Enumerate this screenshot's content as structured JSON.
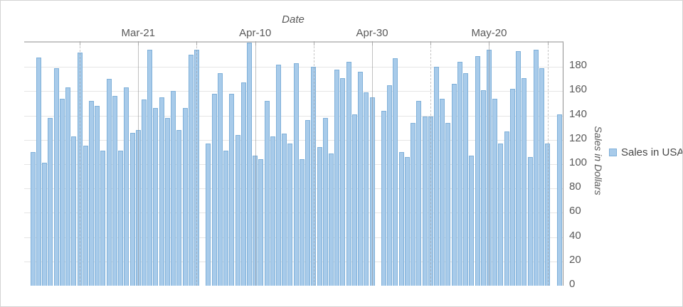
{
  "chart_title_x_axis": "Date",
  "y_axis_title": "Sales in Dollars",
  "legend": {
    "label": "Sales in USA",
    "swatch_fill": "#a8cbea",
    "swatch_border": "#7fb0d9"
  },
  "colors": {
    "bar_fill": "#a8cbea",
    "bar_border": "#7fb0d9",
    "h_gridline": "#e5e5e5",
    "axis_line": "#8f8f8f",
    "text": "#595959"
  },
  "chart_data": {
    "type": "bar",
    "title": "Date",
    "xlabel": "Date",
    "ylabel": "Sales in Dollars",
    "series_name": "Sales in USA",
    "ylim": [
      0,
      200
    ],
    "y_tick_step": 20,
    "y_tick_labels": [
      "0",
      "20",
      "40",
      "60",
      "80",
      "100",
      "120",
      "140",
      "160",
      "180"
    ],
    "x_major_tick_labels": [
      "Mar-21",
      "Apr-10",
      "Apr-30",
      "May-20"
    ],
    "x_minor_tick_dates": [
      "Mar-11",
      "Mar-31",
      "Apr-20",
      "May-10",
      "May-30"
    ],
    "grid": "horizontal-solid, vertical major solid + minor dashed",
    "legend_position": "right",
    "missing_dates": [
      "Apr-01",
      "May-01",
      "May-31"
    ],
    "dates": [
      "Mar-03",
      "Mar-04",
      "Mar-05",
      "Mar-06",
      "Mar-07",
      "Mar-08",
      "Mar-09",
      "Mar-10",
      "Mar-11",
      "Mar-12",
      "Mar-13",
      "Mar-14",
      "Mar-15",
      "Mar-16",
      "Mar-17",
      "Mar-18",
      "Mar-19",
      "Mar-20",
      "Mar-21",
      "Mar-22",
      "Mar-23",
      "Mar-24",
      "Mar-25",
      "Mar-26",
      "Mar-27",
      "Mar-28",
      "Mar-29",
      "Mar-30",
      "Mar-31",
      "Apr-02",
      "Apr-03",
      "Apr-04",
      "Apr-05",
      "Apr-06",
      "Apr-07",
      "Apr-08",
      "Apr-09",
      "Apr-10",
      "Apr-11",
      "Apr-12",
      "Apr-13",
      "Apr-14",
      "Apr-15",
      "Apr-16",
      "Apr-17",
      "Apr-18",
      "Apr-19",
      "Apr-20",
      "Apr-21",
      "Apr-22",
      "Apr-23",
      "Apr-24",
      "Apr-25",
      "Apr-26",
      "Apr-27",
      "Apr-28",
      "Apr-29",
      "Apr-30",
      "May-02",
      "May-03",
      "May-04",
      "May-05",
      "May-06",
      "May-07",
      "May-08",
      "May-09",
      "May-10",
      "May-11",
      "May-12",
      "May-13",
      "May-14",
      "May-15",
      "May-16",
      "May-17",
      "May-18",
      "May-19",
      "May-20",
      "May-21",
      "May-22",
      "May-23",
      "May-24",
      "May-25",
      "May-26",
      "May-27",
      "May-28",
      "May-29",
      "May-30",
      "Jun-01"
    ],
    "values": [
      110,
      188,
      101,
      138,
      179,
      154,
      163,
      123,
      192,
      115,
      152,
      148,
      111,
      170,
      156,
      111,
      163,
      126,
      128,
      153,
      194,
      146,
      155,
      138,
      160,
      128,
      146,
      190,
      194,
      117,
      158,
      175,
      111,
      158,
      124,
      167,
      200,
      107,
      104,
      152,
      123,
      182,
      125,
      117,
      183,
      104,
      136,
      180,
      114,
      138,
      109,
      178,
      171,
      184,
      141,
      176,
      159,
      155,
      144,
      165,
      187,
      110,
      106,
      134,
      152,
      139,
      139,
      180,
      154,
      134,
      166,
      184,
      175,
      107,
      189,
      161,
      194,
      154,
      117,
      127,
      162,
      193,
      171,
      106,
      194,
      179,
      117,
      141
    ]
  }
}
